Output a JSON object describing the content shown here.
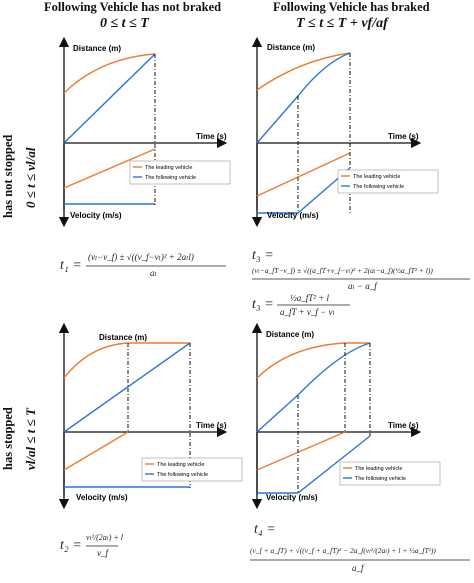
{
  "headers": {
    "col1_title": "Following Vehicle has not braked",
    "col1_condition": "0 ≤ t ≤ T",
    "col2_title": "Following Vehicle has braked",
    "col2_condition": "T ≤ t ≤ T + vf/af"
  },
  "rows": {
    "row1_label": "has not stopped",
    "row1_condition": "0 ≤ t ≤ vl/al",
    "row2_label": "has stopped",
    "row2_condition": "vl/al ≤ t ≤ T"
  },
  "axes": {
    "distance": "Distance (m)",
    "time": "Time (s)",
    "velocity": "Velocity (m/s)"
  },
  "legend": {
    "leading": "The leading vehicle",
    "following": "The following vehicle"
  },
  "colors": {
    "leading": "#ED7D31",
    "following": "#2E75D6"
  },
  "equations": {
    "t1_lhs": "t₁ =",
    "t1_num": "(vₗ−v_f) ± √((v_f−vₗ)² + 2aₗl)",
    "t1_den": "aₗ",
    "t3_lhs": "t₃ =",
    "t3_num": "(vₗ−a_fT−v_f) ± √((a_fT+v_f−vₗ)² + 2(aₗ−a_f)(½a_fT² + l))",
    "t3_den": "aₗ − a_f",
    "t3b_lhs": "t₃ =",
    "t3b_num": "½a_fT² + l",
    "t3b_den": "a_fT + v_f − vₗ",
    "t2_lhs": "t₂ =",
    "t2_num": "vₗ²/(2aₗ) + l",
    "t2_den": "v_f",
    "t4_lhs": "t₄ =",
    "t4_num": "(v_f + a_fT) + √((v_f + a_fT)² − 2a_f(vₗ²/(2aₗ) + l + ½a_fT²))",
    "t4_den": "a_f"
  }
}
